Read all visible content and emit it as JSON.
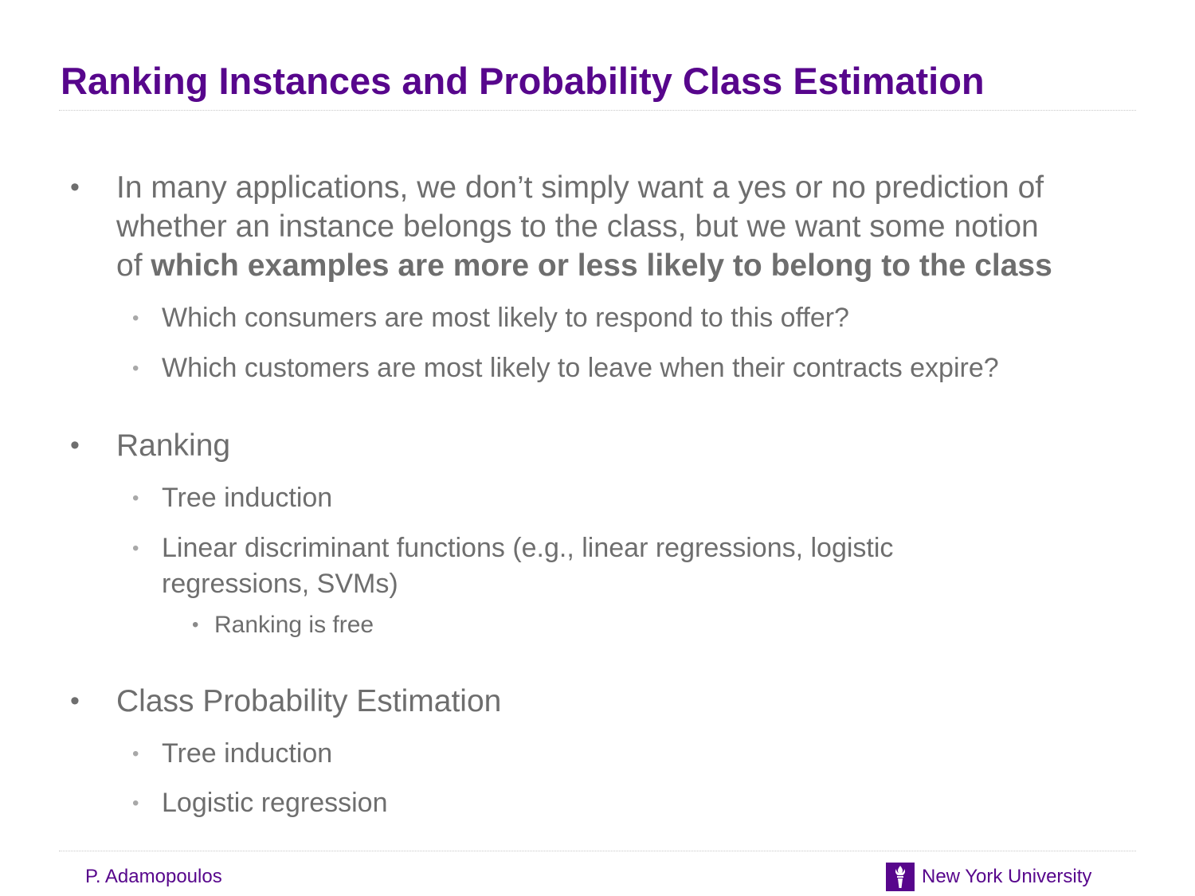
{
  "title": "Ranking Instances and Probability Class Estimation",
  "bullets": {
    "b1": {
      "line1": "In many applications, we don’t simply want a yes or no prediction of",
      "line2": "whether an instance belongs to the class, but we want some notion",
      "line3_prefix": "of ",
      "line3_bold": "which examples are more or less likely to belong to the class",
      "sub1": "Which consumers are most likely to respond to this offer?",
      "sub2": "Which customers are most likely to leave when their contracts expire?"
    },
    "b2": {
      "text": "Ranking",
      "sub1": "Tree induction",
      "sub2_line1": "Linear discriminant functions (e.g., linear regressions, logistic",
      "sub2_line2": "regressions, SVMs)",
      "sub2_sub1": "Ranking is free"
    },
    "b3": {
      "text": "Class Probability Estimation",
      "sub1": "Tree induction",
      "sub2": "Logistic regression"
    }
  },
  "footer": {
    "author": "P. Adamopoulos",
    "university": "New York University",
    "logo_icon": "torch-icon"
  },
  "colors": {
    "brand": "#57068c",
    "body_text": "#6e6e6e"
  }
}
